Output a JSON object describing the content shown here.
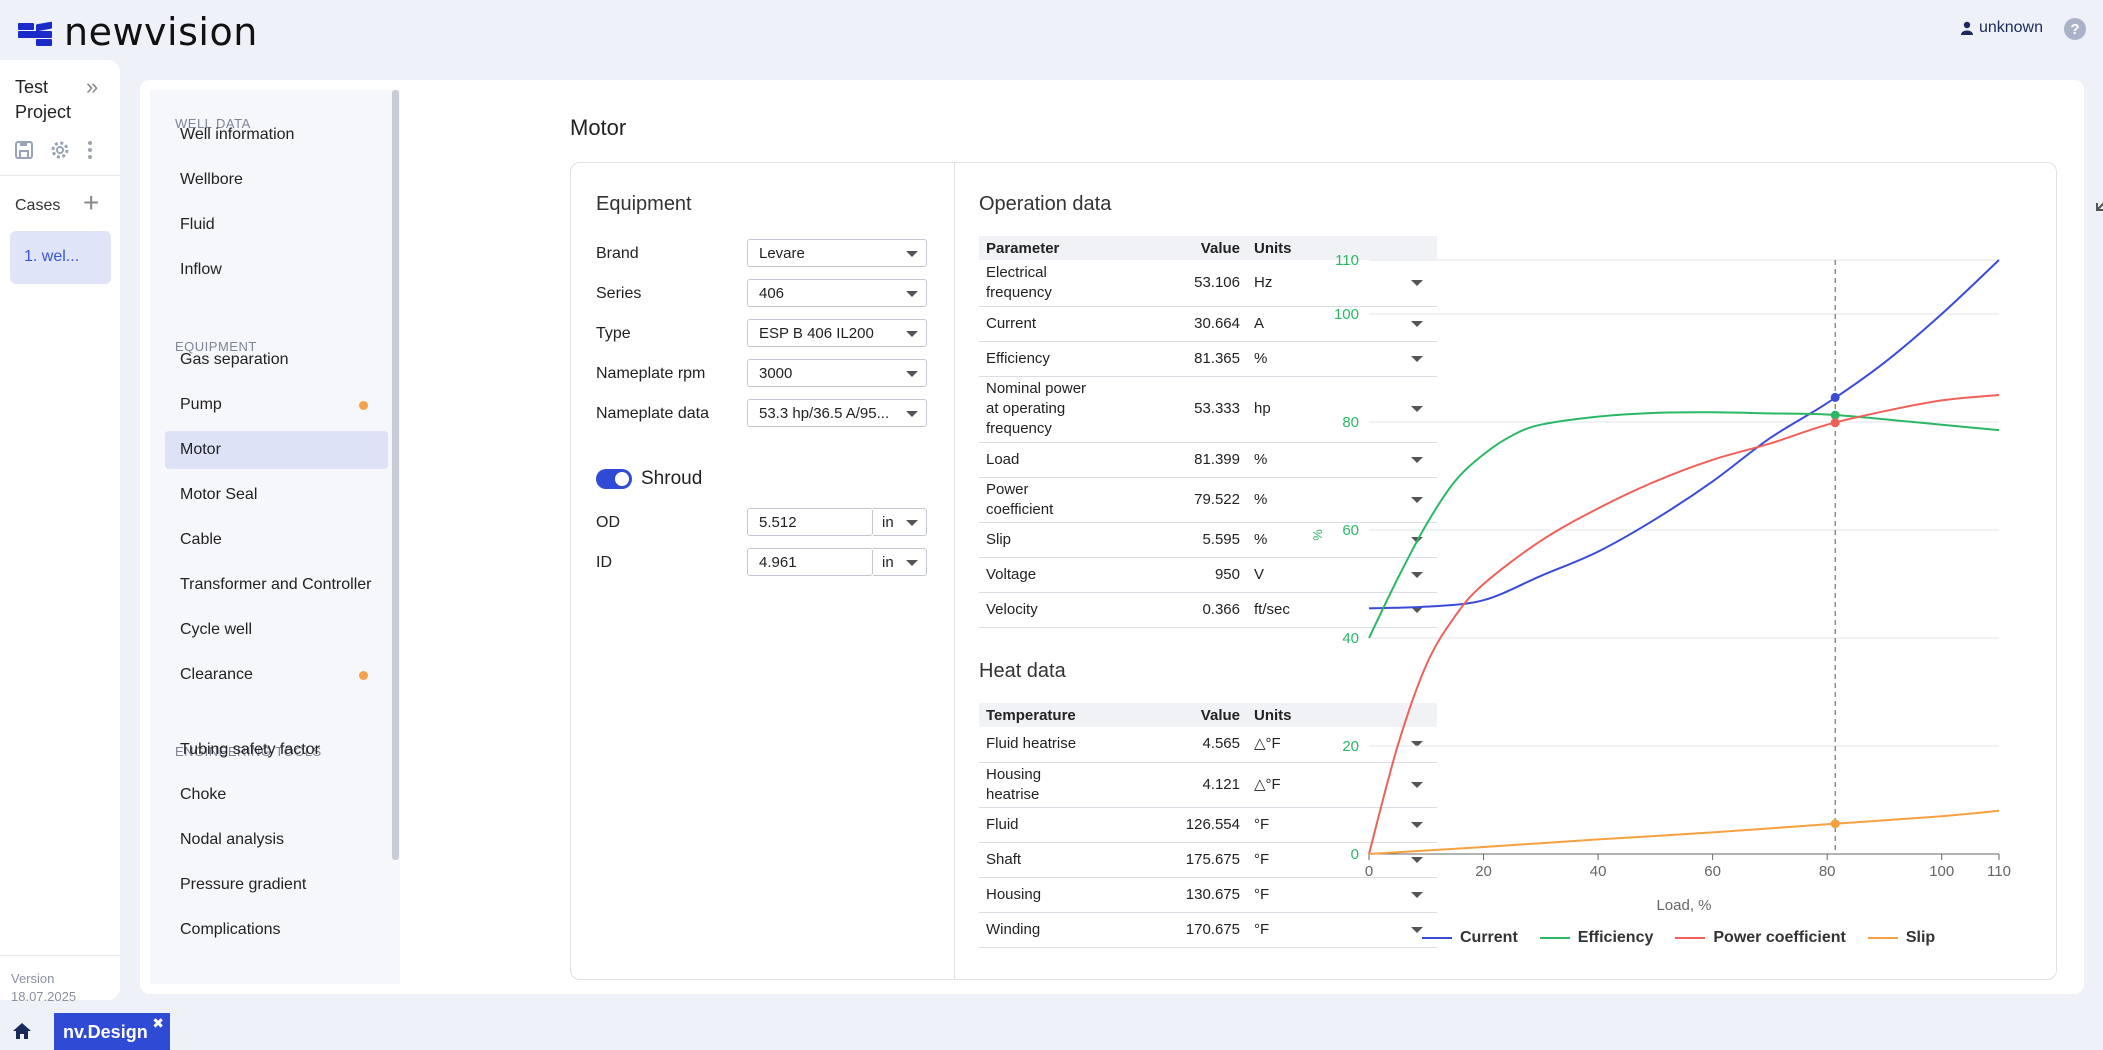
{
  "header": {
    "logo_text": "newvision",
    "user": "unknown",
    "help": "?"
  },
  "project": {
    "title_line1": "Test",
    "title_line2": "Project",
    "cases_label": "Cases",
    "case_item": "1. wel...",
    "version_label": "Version",
    "version_date": "18.07.2025"
  },
  "nav": {
    "sections": [
      "WELL DATA",
      "EQUIPMENT",
      "ENGINEERING TOOLS"
    ],
    "items": [
      {
        "label": "Well information"
      },
      {
        "label": "Wellbore"
      },
      {
        "label": "Fluid"
      },
      {
        "label": "Inflow"
      },
      {
        "label": "Gas separation"
      },
      {
        "label": "Pump",
        "dot": true
      },
      {
        "label": "Motor",
        "active": true
      },
      {
        "label": "Motor Seal"
      },
      {
        "label": "Cable"
      },
      {
        "label": "Transformer and Controller"
      },
      {
        "label": "Cycle well"
      },
      {
        "label": "Clearance",
        "dot": true
      },
      {
        "label": "Tubing safety factor"
      },
      {
        "label": "Choke"
      },
      {
        "label": "Nodal analysis"
      },
      {
        "label": "Pressure gradient"
      },
      {
        "label": "Complications"
      }
    ]
  },
  "page_title": "Motor",
  "equipment": {
    "title": "Equipment",
    "fields": [
      {
        "label": "Brand",
        "value": "Levare"
      },
      {
        "label": "Series",
        "value": "406"
      },
      {
        "label": "Type",
        "value": "ESP B 406 IL200"
      },
      {
        "label": "Nameplate rpm",
        "value": "3000"
      },
      {
        "label": "Nameplate data",
        "value": "53.3 hp/36.5 A/95..."
      }
    ],
    "shroud_label": "Shroud",
    "shroud_on": true,
    "od": {
      "label": "OD",
      "value": "5.512",
      "unit": "in"
    },
    "id": {
      "label": "ID",
      "value": "4.961",
      "unit": "in"
    }
  },
  "operation": {
    "title": "Operation data",
    "headers": [
      "Parameter",
      "Value",
      "Units"
    ],
    "rows": [
      {
        "param": "Electrical frequency",
        "value": "53.106",
        "unit": "Hz"
      },
      {
        "param": "Current",
        "value": "30.664",
        "unit": "A"
      },
      {
        "param": "Efficiency",
        "value": "81.365",
        "unit": "%"
      },
      {
        "param": "Nominal power at operating frequency",
        "value": "53.333",
        "unit": "hp"
      },
      {
        "param": "Load",
        "value": "81.399",
        "unit": "%"
      },
      {
        "param": "Power coefficient",
        "value": "79.522",
        "unit": "%"
      },
      {
        "param": "Slip",
        "value": "5.595",
        "unit": "%"
      },
      {
        "param": "Voltage",
        "value": "950",
        "unit": "V"
      },
      {
        "param": "Velocity",
        "value": "0.366",
        "unit": "ft/sec"
      }
    ]
  },
  "heat": {
    "title": "Heat data",
    "headers": [
      "Temperature",
      "Value",
      "Units"
    ],
    "rows": [
      {
        "param": "Fluid heatrise",
        "value": "4.565",
        "unit": "△°F"
      },
      {
        "param": "Housing heatrise",
        "value": "4.121",
        "unit": "△°F"
      },
      {
        "param": "Fluid",
        "value": "126.554",
        "unit": "°F"
      },
      {
        "param": "Shaft",
        "value": "175.675",
        "unit": "°F"
      },
      {
        "param": "Housing",
        "value": "130.675",
        "unit": "°F"
      },
      {
        "param": "Winding",
        "value": "170.675",
        "unit": "°F"
      }
    ]
  },
  "chart_data": {
    "type": "line",
    "xlabel": "Load, %",
    "ylabel": "%",
    "xlim": [
      0,
      110
    ],
    "ylim": [
      0,
      110
    ],
    "x_ticks": [
      0,
      20,
      40,
      60,
      80,
      100,
      110
    ],
    "y_ticks": [
      0,
      20,
      40,
      60,
      80,
      100,
      110
    ],
    "marker_x": 81.399,
    "grid": true,
    "legend": "bottom",
    "series": [
      {
        "name": "Current",
        "color": "#3a4bd8",
        "points": [
          [
            0,
            45.5
          ],
          [
            10,
            45.8
          ],
          [
            20,
            47
          ],
          [
            30,
            51.5
          ],
          [
            40,
            56
          ],
          [
            50,
            62
          ],
          [
            60,
            69
          ],
          [
            70,
            77
          ],
          [
            80,
            83.5
          ],
          [
            90,
            91
          ],
          [
            100,
            100
          ],
          [
            110,
            110
          ]
        ]
      },
      {
        "name": "Efficiency",
        "color": "#2bb865",
        "points": [
          [
            0,
            40
          ],
          [
            5,
            51
          ],
          [
            10,
            61
          ],
          [
            15,
            69
          ],
          [
            20,
            74
          ],
          [
            25,
            77.5
          ],
          [
            30,
            79.5
          ],
          [
            40,
            81
          ],
          [
            50,
            81.7
          ],
          [
            60,
            81.8
          ],
          [
            70,
            81.6
          ],
          [
            80,
            81.4
          ],
          [
            90,
            80.5
          ],
          [
            100,
            79.5
          ],
          [
            110,
            78.5
          ]
        ]
      },
      {
        "name": "Power coefficient",
        "color": "#f0605a",
        "points": [
          [
            0,
            0
          ],
          [
            5,
            20
          ],
          [
            10,
            35
          ],
          [
            15,
            44
          ],
          [
            20,
            50
          ],
          [
            30,
            58
          ],
          [
            40,
            64
          ],
          [
            50,
            69
          ],
          [
            60,
            73
          ],
          [
            70,
            76
          ],
          [
            80,
            79.5
          ],
          [
            90,
            82
          ],
          [
            100,
            84
          ],
          [
            110,
            85
          ]
        ]
      },
      {
        "name": "Slip",
        "color": "#f7a040",
        "points": [
          [
            0,
            0
          ],
          [
            20,
            1.3
          ],
          [
            40,
            2.7
          ],
          [
            60,
            4
          ],
          [
            80,
            5.5
          ],
          [
            100,
            7
          ],
          [
            110,
            8
          ]
        ]
      }
    ]
  }
}
